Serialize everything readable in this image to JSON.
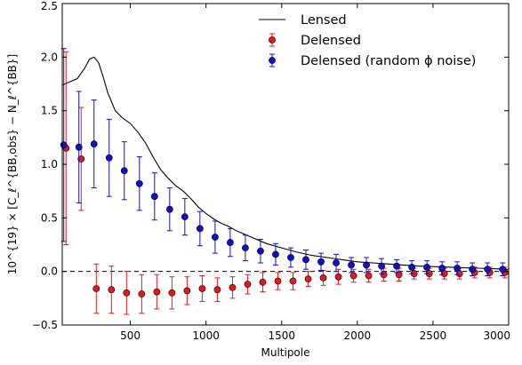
{
  "chart_data": {
    "type": "scatter",
    "xlabel": "Multipole",
    "ylabel": "10^{19} × [C_ℓ^{BB,obs} − N_ℓ^{BB}]",
    "xlim": [
      50,
      3000
    ],
    "ylim": [
      -0.5,
      2.5
    ],
    "xticks": [
      500,
      1000,
      1500,
      2000,
      2500,
      3000
    ],
    "yticks": [
      -0.5,
      0.0,
      0.5,
      1.0,
      1.5,
      2.0,
      2.5
    ],
    "xtick_labels": [
      "500",
      "1000",
      "1500",
      "2000",
      "2500",
      "3000"
    ],
    "ytick_labels": [
      "−0.5",
      "0.0",
      "0.5",
      "1.0",
      "1.5",
      "2.0",
      "2.5"
    ],
    "grid": false,
    "legend_position": "top-right",
    "reference_line": {
      "y": 0.0,
      "style": "dashed"
    },
    "series": [
      {
        "name": "Lensed",
        "kind": "line",
        "color": "#000000",
        "x": [
          50,
          100,
          150,
          200,
          230,
          260,
          290,
          320,
          350,
          400,
          450,
          500,
          550,
          600,
          650,
          700,
          750,
          800,
          850,
          900,
          950,
          1000,
          1050,
          1100,
          1150,
          1200,
          1300,
          1400,
          1500,
          1600,
          1700,
          1800,
          1900,
          2000,
          2100,
          2200,
          2300,
          2400,
          2500,
          2600,
          2700,
          2800,
          2900,
          3000
        ],
        "y": [
          1.74,
          1.77,
          1.8,
          1.9,
          1.98,
          2.0,
          1.95,
          1.82,
          1.67,
          1.5,
          1.43,
          1.38,
          1.3,
          1.2,
          1.07,
          0.95,
          0.87,
          0.8,
          0.75,
          0.68,
          0.6,
          0.54,
          0.49,
          0.45,
          0.42,
          0.38,
          0.32,
          0.26,
          0.22,
          0.18,
          0.15,
          0.13,
          0.11,
          0.09,
          0.08,
          0.07,
          0.06,
          0.05,
          0.045,
          0.04,
          0.035,
          0.03,
          0.025,
          0.02
        ]
      },
      {
        "name": "Delensed",
        "kind": "errorbar",
        "color": "#e31a1c",
        "x": [
          75,
          175,
          275,
          375,
          475,
          575,
          675,
          775,
          875,
          975,
          1075,
          1175,
          1275,
          1375,
          1475,
          1575,
          1675,
          1775,
          1875,
          1975,
          2075,
          2175,
          2275,
          2375,
          2475,
          2575,
          2675,
          2775,
          2875,
          2975
        ],
        "y": [
          1.15,
          1.05,
          -0.16,
          -0.17,
          -0.2,
          -0.21,
          -0.19,
          -0.2,
          -0.18,
          -0.16,
          -0.17,
          -0.15,
          -0.12,
          -0.1,
          -0.09,
          -0.09,
          -0.07,
          -0.06,
          -0.05,
          -0.04,
          -0.04,
          -0.03,
          -0.03,
          -0.02,
          -0.02,
          -0.02,
          -0.02,
          -0.01,
          -0.01,
          -0.01
        ],
        "yerr": [
          0.9,
          0.48,
          0.23,
          0.22,
          0.2,
          0.18,
          0.16,
          0.15,
          0.13,
          0.12,
          0.11,
          0.1,
          0.09,
          0.09,
          0.08,
          0.08,
          0.07,
          0.07,
          0.07,
          0.06,
          0.06,
          0.06,
          0.06,
          0.05,
          0.05,
          0.05,
          0.05,
          0.05,
          0.05,
          0.05
        ]
      },
      {
        "name": "Delensed (random ϕ noise)",
        "kind": "errorbar",
        "color": "#1010cc",
        "x": [
          60,
          160,
          260,
          360,
          460,
          560,
          660,
          760,
          860,
          960,
          1060,
          1160,
          1260,
          1360,
          1460,
          1560,
          1660,
          1760,
          1860,
          1960,
          2060,
          2160,
          2260,
          2360,
          2460,
          2560,
          2660,
          2760,
          2860,
          2960
        ],
        "y": [
          1.18,
          1.16,
          1.19,
          1.06,
          0.94,
          0.82,
          0.7,
          0.58,
          0.51,
          0.4,
          0.32,
          0.27,
          0.22,
          0.19,
          0.16,
          0.13,
          0.11,
          0.09,
          0.08,
          0.06,
          0.06,
          0.05,
          0.05,
          0.04,
          0.04,
          0.03,
          0.03,
          0.02,
          0.02,
          0.02
        ],
        "yerr": [
          0.9,
          0.52,
          0.41,
          0.36,
          0.27,
          0.25,
          0.22,
          0.2,
          0.17,
          0.16,
          0.15,
          0.13,
          0.12,
          0.11,
          0.1,
          0.09,
          0.09,
          0.08,
          0.08,
          0.07,
          0.07,
          0.07,
          0.06,
          0.06,
          0.06,
          0.06,
          0.06,
          0.06,
          0.06,
          0.06
        ]
      }
    ]
  }
}
